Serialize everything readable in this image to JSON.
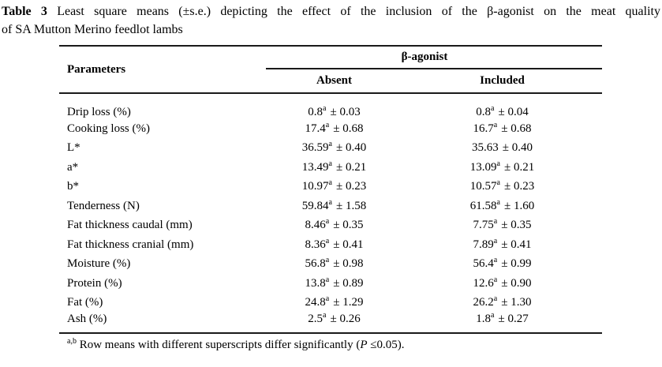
{
  "caption": {
    "label": "Table 3",
    "line1_rest": " Least square means (±s.e.) depicting the effect of the inclusion of the β-agonist on the meat quality",
    "line2": "of SA Mutton Merino feedlot lambs"
  },
  "table": {
    "param_header": "Parameters",
    "group_header": "β-agonist",
    "absent_header": "Absent",
    "included_header": "Included",
    "rows": [
      {
        "param": "Drip loss (%)",
        "absent": {
          "mean": "0.8",
          "sup": "a",
          "se": "± 0.03"
        },
        "included": {
          "mean": "0.8",
          "sup": "a",
          "se": "± 0.04"
        }
      },
      {
        "param": "Cooking loss (%)",
        "absent": {
          "mean": "17.4",
          "sup": "a",
          "se": "± 0.68"
        },
        "included": {
          "mean": "16.7",
          "sup": "a",
          "se": "± 0.68"
        }
      },
      {
        "param": "L*",
        "absent": {
          "mean": "36.59",
          "sup": "a",
          "se": "± 0.40"
        },
        "included": {
          "mean": "35.63",
          "sup": "",
          "se": "± 0.40"
        }
      },
      {
        "param": "a*",
        "absent": {
          "mean": "13.49",
          "sup": "a",
          "se": "± 0.21"
        },
        "included": {
          "mean": "13.09",
          "sup": "a",
          "se": "± 0.21"
        }
      },
      {
        "param": "b*",
        "absent": {
          "mean": "10.97",
          "sup": "a",
          "se": "± 0.23"
        },
        "included": {
          "mean": "10.57",
          "sup": "a",
          "se": "± 0.23"
        }
      },
      {
        "param": "Tenderness (N)",
        "absent": {
          "mean": "59.84",
          "sup": "a",
          "se": "± 1.58"
        },
        "included": {
          "mean": "61.58",
          "sup": "a",
          "se": "± 1.60"
        }
      },
      {
        "param": "Fat thickness caudal (mm)",
        "absent": {
          "mean": "8.46",
          "sup": "a",
          "se": "± 0.35"
        },
        "included": {
          "mean": "7.75",
          "sup": "a",
          "se": "± 0.35"
        }
      },
      {
        "param": "Fat thickness cranial (mm)",
        "absent": {
          "mean": "8.36",
          "sup": "a",
          "se": "± 0.41"
        },
        "included": {
          "mean": "7.89",
          "sup": "a",
          "se": "± 0.41"
        }
      },
      {
        "param": "Moisture (%)",
        "absent": {
          "mean": "56.8",
          "sup": "a",
          "se": "± 0.98"
        },
        "included": {
          "mean": "56.4",
          "sup": "a",
          "se": "± 0.99"
        }
      },
      {
        "param": "Protein (%)",
        "absent": {
          "mean": "13.8",
          "sup": "a",
          "se": "± 0.89"
        },
        "included": {
          "mean": "12.6",
          "sup": "a",
          "se": "± 0.90"
        }
      },
      {
        "param": "Fat (%)",
        "absent": {
          "mean": "24.8",
          "sup": "a",
          "se": "± 1.29"
        },
        "included": {
          "mean": "26.2",
          "sup": "a",
          "se": "± 1.30"
        }
      },
      {
        "param": "Ash (%)",
        "absent": {
          "mean": "2.5",
          "sup": "a",
          "se": "± 0.26"
        },
        "included": {
          "mean": "1.8",
          "sup": "a",
          "se": "± 0.27"
        }
      }
    ]
  },
  "footnote": {
    "sup": "a,b",
    "text_before_p": " Row means with different superscripts differ significantly (",
    "p": "P",
    "text_after_p": " ≤0.05)."
  }
}
